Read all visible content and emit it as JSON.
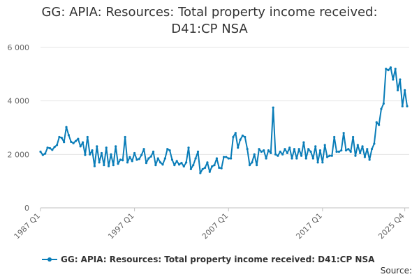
{
  "chart_data": {
    "type": "line",
    "title": "GG: APIA: Resources: Total property income received: D41:CP NSA",
    "title_lines": [
      "GG: APIA: Resources: Total property income received:",
      "D41:CP NSA"
    ],
    "xlabel": "",
    "ylabel": "",
    "ylim": [
      0,
      6000
    ],
    "yticks": [
      0,
      2000,
      4000,
      6000
    ],
    "ytick_labels": [
      "0",
      "2 000",
      "4 000",
      "6 000"
    ],
    "xtick_labels": [
      "1987 Q1",
      "1997 Q1",
      "2007 Q1",
      "2017 Q1",
      "2025 Q4"
    ],
    "xtick_index": [
      0,
      40,
      80,
      120,
      155
    ],
    "grid": true,
    "legend_position": "bottom",
    "series": [
      {
        "name": "GG: APIA: Resources: Total property income received: D41:CP NSA",
        "color": "#0a7db8",
        "values": [
          2100,
          1980,
          2030,
          2250,
          2230,
          2170,
          2280,
          2350,
          2650,
          2620,
          2460,
          3020,
          2720,
          2470,
          2420,
          2500,
          2580,
          2300,
          2450,
          1980,
          2650,
          2000,
          2150,
          1560,
          2300,
          1700,
          2050,
          1600,
          2250,
          1560,
          2000,
          1600,
          2300,
          1650,
          1800,
          1780,
          2650,
          1700,
          1900,
          1750,
          2050,
          1800,
          1830,
          1980,
          2200,
          1680,
          1850,
          1920,
          2100,
          1600,
          1850,
          1700,
          1620,
          1850,
          2200,
          2150,
          1800,
          1600,
          1750,
          1620,
          1680,
          1550,
          1700,
          2250,
          1450,
          1600,
          1850,
          2100,
          1300,
          1450,
          1500,
          1700,
          1350,
          1550,
          1600,
          1850,
          1500,
          1480,
          1900,
          1900,
          1850,
          1850,
          2650,
          2800,
          2250,
          2550,
          2700,
          2650,
          2200,
          1600,
          1700,
          2000,
          1600,
          2200,
          2100,
          2150,
          1850,
          2150,
          2050,
          3750,
          2000,
          1950,
          2100,
          2000,
          2200,
          2050,
          2250,
          1850,
          2200,
          1850,
          2200,
          1950,
          2450,
          1850,
          2200,
          2100,
          1850,
          2300,
          1700,
          2150,
          1700,
          2350,
          1900,
          1950,
          1950,
          2650,
          2100,
          2100,
          2150,
          2800,
          2150,
          2200,
          2100,
          2650,
          1950,
          2350,
          2050,
          2300,
          1900,
          2200,
          1800,
          2200,
          2400,
          3200,
          3100,
          3700,
          3900,
          5200,
          5150,
          5250,
          4800,
          5200,
          4400,
          4800,
          3800,
          4400,
          3800
        ]
      }
    ]
  },
  "legend": {
    "label": "GG: APIA: Resources: Total property income received: D41:CP NSA"
  },
  "source_label": "Source:"
}
